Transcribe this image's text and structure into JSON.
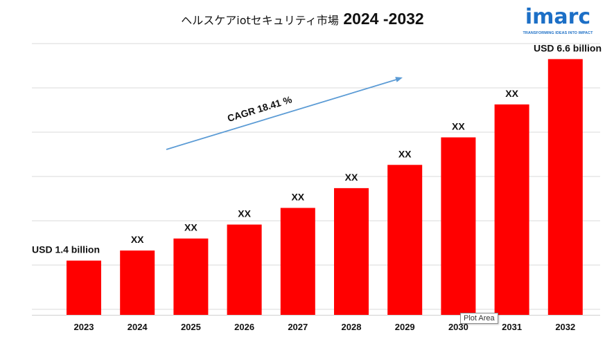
{
  "title_jp": "ヘルスケアiotセキュリティ市場",
  "title_years": "2024 -2032",
  "brand": {
    "name": "imarc",
    "tagline": "TRANSFORMING IDEAS INTO IMPACT",
    "color": "#1c6fc6"
  },
  "tooltip": "Plot Area",
  "chart_data": {
    "type": "bar",
    "categories": [
      "2023",
      "2024",
      "2025",
      "2026",
      "2027",
      "2028",
      "2029",
      "2030",
      "2031",
      "2032"
    ],
    "values": [
      1.4,
      1.66,
      1.97,
      2.33,
      2.76,
      3.27,
      3.87,
      4.58,
      5.43,
      6.6
    ],
    "data_labels": [
      "USD 1.4 billion",
      "XX",
      "XX",
      "XX",
      "XX",
      "XX",
      "XX",
      "XX",
      "XX",
      "USD 6.6 billion"
    ],
    "annotation": "CAGR 18.41 %",
    "ylim": [
      0,
      7.0
    ],
    "grid": true,
    "bar_color": "#ff0000",
    "arrow_color": "#5b9bd5",
    "grid_color": "#d9d9d9"
  }
}
